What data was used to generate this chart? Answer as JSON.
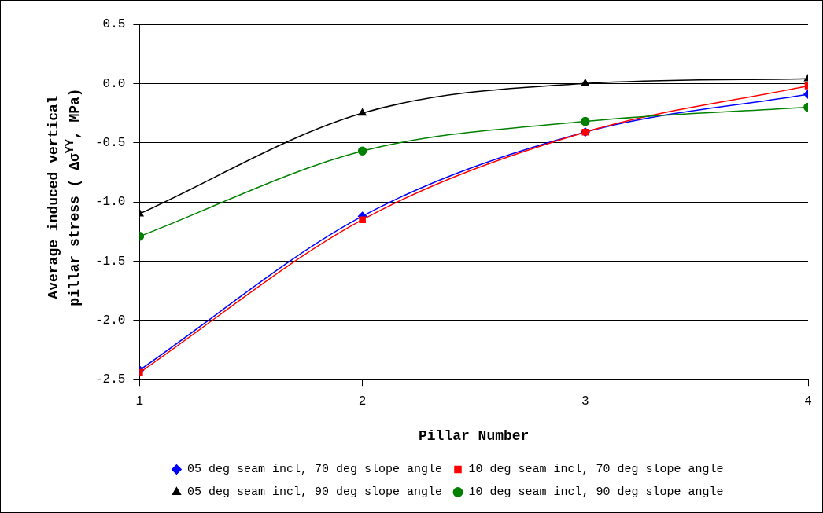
{
  "chart_data": {
    "type": "line",
    "xlabel": "Pillar Number",
    "ylabel": "Average induced vertical pillar stress  ( Δσ$^{YY}$, MPa)",
    "x": [
      1,
      2,
      3,
      4
    ],
    "xlim": [
      1,
      4
    ],
    "xticks": [
      1,
      2,
      3,
      4
    ],
    "ylim": [
      -2.5,
      0.5
    ],
    "yticks": [
      -2.5,
      {
        "value": -2,
        "label": "-2.0"
      },
      -1.5,
      {
        "value": -1,
        "label": "-1.0"
      },
      -0.5,
      {
        "value": 0,
        "label": "0.0"
      },
      0.5
    ],
    "grid": "y",
    "legend": "bottom",
    "line_style": "solid",
    "series": [
      {
        "name": "05 deg seam incl, 70 deg slope angle",
        "color": "#0000ff",
        "marker": "diamond",
        "values": [
          -2.42,
          -1.12,
          -0.41,
          -0.09
        ]
      },
      {
        "name": "10 deg seam incl, 70 deg slope angle",
        "color": "#ff0000",
        "marker": "square",
        "values": [
          -2.44,
          -1.15,
          -0.41,
          -0.02
        ]
      },
      {
        "name": "05 deg seam incl, 90 deg slope angle",
        "color": "#000000",
        "marker": "triangle",
        "values": [
          -1.1,
          -0.25,
          0.0,
          0.04
        ]
      },
      {
        "name": "10 deg seam incl, 90 deg slope angle",
        "color": "#008000",
        "marker": "circle",
        "values": [
          -1.29,
          -0.57,
          -0.32,
          -0.2
        ]
      }
    ]
  }
}
